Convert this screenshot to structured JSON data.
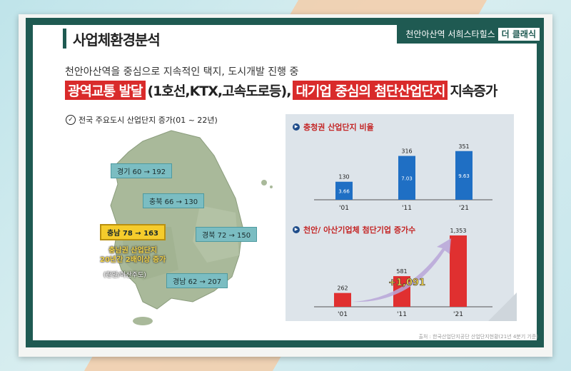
{
  "header": {
    "title": "사업체환경분석",
    "brand": "천안아산역 서희스타힐스",
    "brand_badge": "더 클래식"
  },
  "intro": {
    "line1": "천안아산역을 중심으로 지속적인 택지, 도시개발 진행 중",
    "hl1": "광역교통 발달",
    "mid": "(1호선,KTX,고속도로등),",
    "hl2": "대기업 중심의 첨단산업단지",
    "tail": "지속증가"
  },
  "map": {
    "caption": "전국 주요도시 산업단지 증가(01 ~ 22년)",
    "regions": [
      {
        "label": "경기 60 → 192"
      },
      {
        "label": "충북 66 → 130"
      },
      {
        "label": "충남 78 → 163"
      },
      {
        "label": "경북 72 → 150"
      },
      {
        "label": "경남 62 → 207"
      }
    ],
    "note_line1": "충남권 산업단지",
    "note_line2": "20년간 2배이상 증가",
    "note_line3": "(천안/아산주도)"
  },
  "panel": {
    "chart1_title": "충청권 산업단지 비율",
    "chart2_title": "천안/ 아산기업체 첨단기업 증가수",
    "source": "출처 : 한국산업단지공단 산업단지현황(21년 4분기 기준)"
  },
  "chart_data": [
    {
      "type": "bar",
      "title": "충청권 산업단지 비율",
      "categories": [
        "'01",
        "'11",
        "'21"
      ],
      "series": [
        {
          "values": [
            130,
            316,
            351
          ]
        },
        {
          "values": [
            3.66,
            7.03,
            9.63
          ]
        }
      ],
      "top_labels": [
        "130",
        "316",
        "351"
      ],
      "inner_labels": [
        "3.66",
        "7.03",
        "9.63"
      ],
      "colors": [
        "#1f6fc4"
      ]
    },
    {
      "type": "bar",
      "title": "천안/ 아산기업체 첨단기업 증가수",
      "categories": [
        "'01",
        "'11",
        "'21"
      ],
      "values": [
        262,
        581,
        1353
      ],
      "labels": [
        "262",
        "581",
        "1,353"
      ],
      "annotation": "+1,091",
      "colors": [
        "#e03030"
      ]
    }
  ]
}
